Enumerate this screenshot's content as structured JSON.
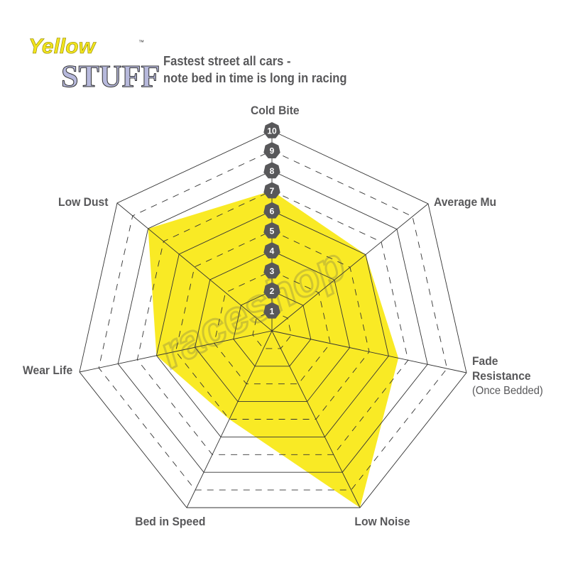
{
  "logo": {
    "line1": "Yellow",
    "line2": "STUFF",
    "tm": "™"
  },
  "title": {
    "line1": "Fastest street all cars -",
    "line2": "note bed in time is long in racing"
  },
  "watermark": "raceshop",
  "chart_data": {
    "type": "radar",
    "title": "Fastest street all cars - note bed in time is long in racing",
    "axes": [
      {
        "label": "Cold Bite",
        "sublabel": ""
      },
      {
        "label": "Average Mu",
        "sublabel": ""
      },
      {
        "label": "Fade Resistance",
        "sublabel": "(Once Bedded)"
      },
      {
        "label": "Low Noise",
        "sublabel": ""
      },
      {
        "label": "Bed in Speed",
        "sublabel": ""
      },
      {
        "label": "Wear Life",
        "sublabel": ""
      },
      {
        "label": "Low Dust",
        "sublabel": ""
      }
    ],
    "values": [
      7,
      6,
      6.5,
      10,
      5,
      6,
      8
    ],
    "scale": {
      "min": 0,
      "max": 10,
      "ticks": [
        "1",
        "2",
        "3",
        "4",
        "5",
        "6",
        "7",
        "8",
        "9",
        "10"
      ]
    },
    "fill_color": "#f9ea25",
    "grid_color": "#333333",
    "tick_badge_color": "#58585a"
  }
}
